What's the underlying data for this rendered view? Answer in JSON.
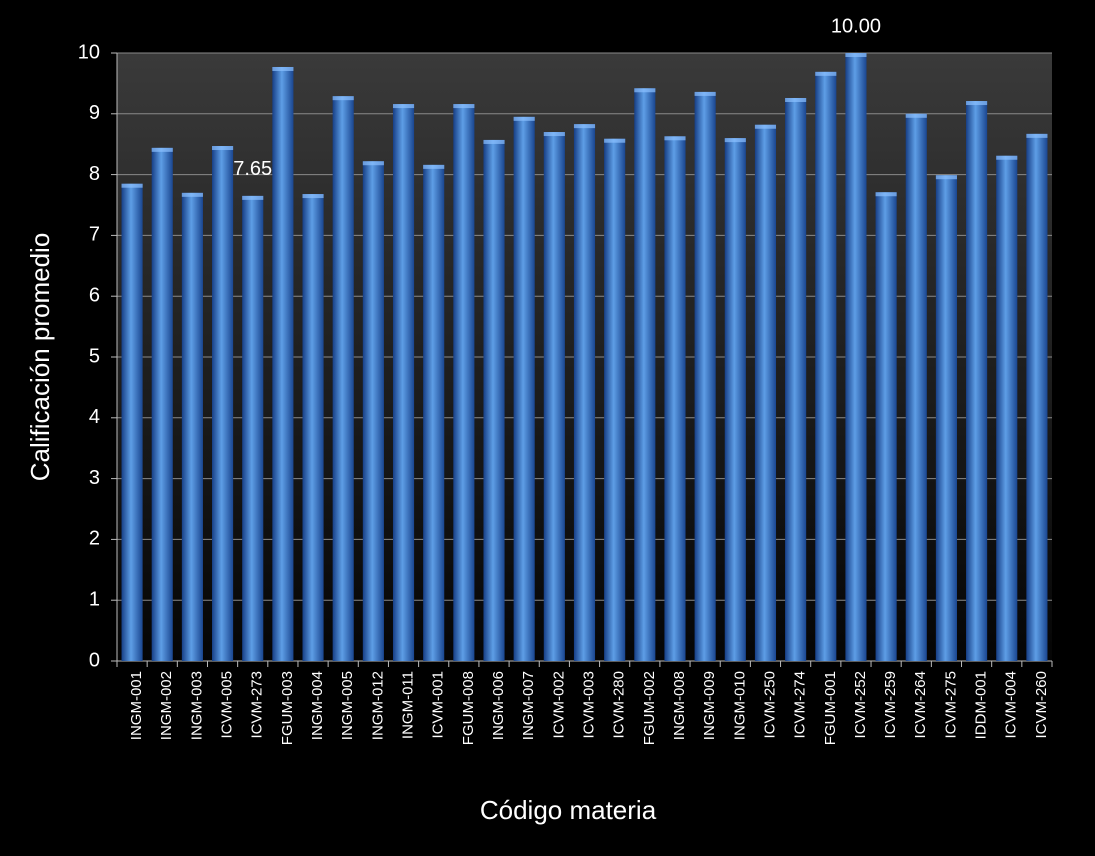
{
  "chart_data": {
    "type": "bar",
    "x_label": "Código materia",
    "y_label": "Calificación promedio",
    "categories": [
      "INGM-001",
      "INGM-002",
      "INGM-003",
      "ICVM-005",
      "ICVM-273",
      "FGUM-003",
      "INGM-004",
      "INGM-005",
      "INGM-012",
      "INGM-011",
      "ICVM-001",
      "FGUM-008",
      "INGM-006",
      "INGM-007",
      "ICVM-002",
      "ICVM-003",
      "ICVM-280",
      "FGUM-002",
      "INGM-008",
      "INGM-009",
      "INGM-010",
      "ICVM-250",
      "ICVM-274",
      "FGUM-001",
      "ICVM-252",
      "ICVM-259",
      "ICVM-264",
      "ICVM-275",
      "IDDM-001",
      "ICVM-004",
      "ICVM-260"
    ],
    "values": [
      7.85,
      8.44,
      7.7,
      8.47,
      7.65,
      9.77,
      7.68,
      9.29,
      8.22,
      9.16,
      8.16,
      9.16,
      8.57,
      8.95,
      8.7,
      8.83,
      8.59,
      9.42,
      8.63,
      9.36,
      8.6,
      8.82,
      9.26,
      9.69,
      10,
      7.71,
      9.0,
      7.99,
      9.21,
      8.31,
      8.67
    ],
    "value_labels": [
      null,
      null,
      null,
      null,
      "7.65",
      null,
      null,
      null,
      null,
      null,
      null,
      null,
      null,
      null,
      null,
      null,
      null,
      null,
      null,
      null,
      null,
      null,
      null,
      null,
      "10.00",
      null,
      null,
      null,
      null,
      null,
      null
    ],
    "color": "#3a78d0",
    "ylim": [
      0,
      10
    ],
    "yticks": [
      0,
      1,
      2,
      3,
      4,
      5,
      6,
      7,
      8,
      9,
      10
    ],
    "grid": true
  }
}
